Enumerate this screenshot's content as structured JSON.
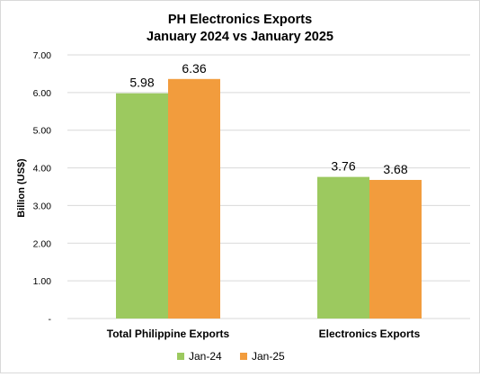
{
  "chart_data": {
    "type": "bar",
    "title_lines": [
      "PH Electronics Exports",
      "January 2024 vs January 2025"
    ],
    "ylabel": "Billion (US$)",
    "xlabel": "",
    "categories": [
      "Total Philippine Exports",
      "Electronics Exports"
    ],
    "series": [
      {
        "name": "Jan-24",
        "values": [
          5.98,
          3.76
        ],
        "color": "#9CC95F",
        "labels": [
          "5.98",
          "3.76"
        ]
      },
      {
        "name": "Jan-25",
        "values": [
          6.36,
          3.68
        ],
        "color": "#F29C3D",
        "labels": [
          "6.36",
          "3.68"
        ]
      }
    ],
    "ylim": [
      0,
      7
    ],
    "yticks": [
      0,
      1,
      2,
      3,
      4,
      5,
      6,
      7
    ],
    "ytick_labels": [
      "-",
      "1.00",
      "2.00",
      "3.00",
      "4.00",
      "5.00",
      "6.00",
      "7.00"
    ],
    "grid": true,
    "grid_color": "#d9d9d9",
    "legend_position": "bottom"
  }
}
